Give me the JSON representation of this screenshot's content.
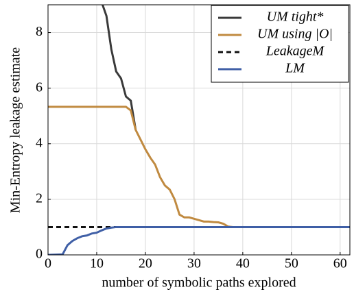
{
  "chart_data": {
    "type": "line",
    "xlabel": "number of symbolic paths explored",
    "ylabel": "Min-Entropy leakage estimate",
    "xlim": [
      0,
      62
    ],
    "ylim": [
      0,
      9
    ],
    "xticks": [
      0,
      10,
      20,
      30,
      40,
      50,
      60
    ],
    "yticks": [
      0,
      2,
      4,
      6,
      8
    ],
    "grid": true,
    "legend": "upper right",
    "series": [
      {
        "name": "UM tight*",
        "color": "#3a3a3a",
        "dash": false,
        "x": [
          11,
          12,
          13,
          14,
          15,
          16,
          17,
          18
        ],
        "values": [
          9.1,
          8.6,
          7.4,
          6.6,
          6.35,
          5.7,
          5.55,
          4.5
        ]
      },
      {
        "name": "UM using |O|",
        "color": "#c08a40",
        "dash": false,
        "x": [
          0,
          16,
          17,
          18,
          19,
          20,
          21,
          22,
          23,
          24,
          25,
          26,
          27,
          28,
          29,
          30,
          31,
          32,
          33,
          34,
          35,
          36,
          37,
          38,
          62
        ],
        "values": [
          5.33,
          5.33,
          5.2,
          4.5,
          4.15,
          3.8,
          3.5,
          3.25,
          2.8,
          2.5,
          2.35,
          2.0,
          1.45,
          1.35,
          1.35,
          1.3,
          1.25,
          1.2,
          1.2,
          1.18,
          1.17,
          1.12,
          1.02,
          1.0,
          1.0
        ]
      },
      {
        "name": "LeakageM",
        "color": "#111111",
        "dash": true,
        "x": [
          0,
          62
        ],
        "values": [
          1,
          1
        ]
      },
      {
        "name": "LM",
        "color": "#3f5fa6",
        "dash": false,
        "x": [
          0,
          3,
          4,
          5,
          6,
          7,
          8,
          9,
          10,
          11,
          12,
          13,
          14,
          62
        ],
        "values": [
          0,
          0.02,
          0.35,
          0.5,
          0.6,
          0.67,
          0.7,
          0.77,
          0.8,
          0.88,
          0.95,
          0.98,
          1.0,
          1.0
        ]
      }
    ]
  }
}
